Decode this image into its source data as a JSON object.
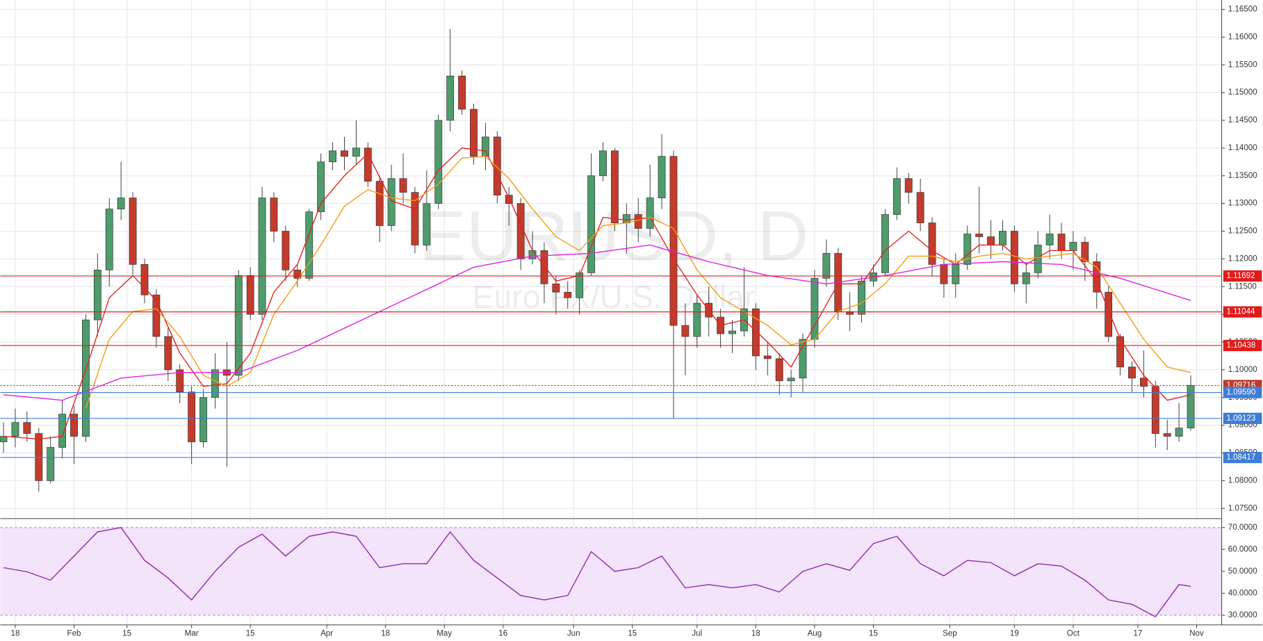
{
  "chart_data": [
    {
      "type": "candlestick",
      "title": "EURUSD, D",
      "subtitle": "Euro FX/U.S. Dollar",
      "x": [
        0,
        2,
        4,
        6,
        8,
        10,
        12,
        14,
        16,
        18,
        20,
        22,
        24,
        26,
        28,
        30,
        32,
        34,
        36,
        38,
        40,
        42,
        44,
        46,
        48,
        50,
        52,
        54,
        56,
        58,
        60,
        62,
        64,
        66,
        68,
        70,
        72,
        74,
        76,
        78,
        80,
        82,
        84,
        86,
        88,
        90,
        92,
        94,
        96,
        98,
        100,
        102,
        104,
        106,
        108,
        110,
        112,
        114,
        116,
        118,
        120,
        122,
        124,
        126,
        128,
        130,
        132,
        134,
        136,
        138,
        140,
        142,
        144,
        146,
        148,
        150,
        152,
        154,
        156,
        158,
        160,
        162,
        164,
        166,
        168,
        170,
        172,
        174,
        176,
        178,
        180,
        182,
        184,
        186,
        188,
        190,
        192,
        194,
        196,
        198,
        200,
        202
      ],
      "open": [
        1.087,
        1.088,
        1.0905,
        1.0885,
        1.08,
        1.086,
        1.092,
        1.088,
        1.109,
        1.118,
        1.129,
        1.131,
        1.119,
        1.1135,
        1.106,
        1.1,
        1.096,
        1.087,
        1.095,
        1.1,
        1.099,
        1.117,
        1.11,
        1.131,
        1.125,
        1.118,
        1.1165,
        1.1285,
        1.1375,
        1.1395,
        1.1385,
        1.14,
        1.134,
        1.126,
        1.1345,
        1.132,
        1.1225,
        1.13,
        1.145,
        1.153,
        1.147,
        1.1385,
        1.142,
        1.1315,
        1.13,
        1.12,
        1.1215,
        1.1155,
        1.114,
        1.113,
        1.1175,
        1.135,
        1.1395,
        1.1265,
        1.128,
        1.1255,
        1.131,
        1.1385,
        1.108,
        1.106,
        1.112,
        1.1095,
        1.1065,
        1.107,
        1.111,
        1.1025,
        1.102,
        1.098,
        1.0985,
        1.1055,
        1.1165,
        1.121,
        1.1105,
        1.11,
        1.116,
        1.1175,
        1.128,
        1.1345,
        1.132,
        1.1265,
        1.119,
        1.1155,
        1.119,
        1.1245,
        1.124,
        1.1225,
        1.125,
        1.1155,
        1.1175,
        1.1225,
        1.1245,
        1.1215,
        1.123,
        1.1195,
        1.114,
        1.106,
        1.1005,
        1.0985,
        1.097,
        1.0885,
        1.088,
        1.0895
      ],
      "high": [
        1.0905,
        1.093,
        1.0925,
        1.0895,
        1.088,
        1.0945,
        1.0935,
        1.11,
        1.121,
        1.131,
        1.1375,
        1.132,
        1.12,
        1.1145,
        1.1075,
        1.101,
        1.097,
        1.0965,
        1.103,
        1.105,
        1.118,
        1.1185,
        1.133,
        1.132,
        1.126,
        1.119,
        1.129,
        1.139,
        1.141,
        1.142,
        1.145,
        1.141,
        1.135,
        1.137,
        1.139,
        1.133,
        1.136,
        1.146,
        1.1615,
        1.154,
        1.148,
        1.1445,
        1.143,
        1.133,
        1.131,
        1.125,
        1.123,
        1.117,
        1.116,
        1.118,
        1.139,
        1.141,
        1.14,
        1.13,
        1.131,
        1.137,
        1.1425,
        1.1395,
        1.112,
        1.1135,
        1.115,
        1.111,
        1.109,
        1.1185,
        1.112,
        1.105,
        1.103,
        1.1,
        1.1065,
        1.118,
        1.1235,
        1.122,
        1.114,
        1.117,
        1.119,
        1.129,
        1.1365,
        1.1355,
        1.1345,
        1.1275,
        1.12,
        1.121,
        1.126,
        1.133,
        1.127,
        1.127,
        1.126,
        1.119,
        1.125,
        1.128,
        1.1265,
        1.125,
        1.124,
        1.121,
        1.115,
        1.1065,
        1.1015,
        1.1035,
        1.098,
        1.091,
        1.094,
        1.099
      ],
      "low": [
        1.085,
        1.086,
        1.087,
        1.078,
        1.0795,
        1.084,
        1.083,
        1.087,
        1.106,
        1.115,
        1.127,
        1.117,
        1.112,
        1.104,
        1.098,
        1.094,
        1.083,
        1.086,
        1.093,
        1.0825,
        1.098,
        1.109,
        1.109,
        1.123,
        1.116,
        1.115,
        1.116,
        1.127,
        1.136,
        1.136,
        1.137,
        1.133,
        1.123,
        1.125,
        1.13,
        1.121,
        1.1215,
        1.129,
        1.143,
        1.146,
        1.137,
        1.136,
        1.13,
        1.126,
        1.118,
        1.119,
        1.112,
        1.11,
        1.111,
        1.11,
        1.117,
        1.134,
        1.125,
        1.121,
        1.123,
        1.124,
        1.129,
        1.0912,
        1.099,
        1.104,
        1.106,
        1.104,
        1.103,
        1.106,
        1.1,
        1.099,
        1.0955,
        1.095,
        1.096,
        1.104,
        1.115,
        1.109,
        1.107,
        1.1085,
        1.115,
        1.117,
        1.127,
        1.13,
        1.125,
        1.117,
        1.113,
        1.113,
        1.118,
        1.121,
        1.12,
        1.1215,
        1.114,
        1.112,
        1.1165,
        1.12,
        1.12,
        1.118,
        1.116,
        1.111,
        1.105,
        1.099,
        1.096,
        1.095,
        1.086,
        1.0855,
        1.087,
        1.089
      ],
      "close": [
        1.088,
        1.0905,
        1.0885,
        1.08,
        1.086,
        1.092,
        1.088,
        1.109,
        1.118,
        1.129,
        1.131,
        1.119,
        1.1135,
        1.106,
        1.1,
        1.096,
        1.087,
        1.095,
        1.1,
        1.099,
        1.117,
        1.11,
        1.131,
        1.125,
        1.118,
        1.1165,
        1.1285,
        1.1375,
        1.1395,
        1.1385,
        1.14,
        1.134,
        1.126,
        1.1345,
        1.132,
        1.1225,
        1.13,
        1.145,
        1.153,
        1.147,
        1.1385,
        1.142,
        1.1315,
        1.13,
        1.12,
        1.1215,
        1.1155,
        1.114,
        1.113,
        1.1175,
        1.135,
        1.1395,
        1.1265,
        1.128,
        1.1255,
        1.131,
        1.1385,
        1.108,
        1.106,
        1.112,
        1.1095,
        1.1065,
        1.107,
        1.111,
        1.1025,
        1.102,
        1.098,
        1.0985,
        1.1055,
        1.1165,
        1.121,
        1.1105,
        1.11,
        1.116,
        1.1175,
        1.128,
        1.1345,
        1.132,
        1.1265,
        1.119,
        1.1155,
        1.119,
        1.1245,
        1.124,
        1.1225,
        1.125,
        1.1155,
        1.1175,
        1.1225,
        1.1245,
        1.1215,
        1.123,
        1.1195,
        1.114,
        1.106,
        1.1005,
        1.0985,
        1.097,
        1.0885,
        1.088,
        1.0895,
        1.0972
      ],
      "up_color": "#4e9c6c",
      "down_color": "#c43b2c",
      "lines": [
        {
          "color": "#e52222",
          "x": [
            0,
            6,
            10,
            14,
            18,
            22,
            26,
            30,
            34,
            38,
            42,
            46,
            50,
            54,
            58,
            62,
            66,
            70,
            74,
            78,
            82,
            86,
            90,
            94,
            98,
            102,
            106,
            110,
            114,
            118,
            122,
            126,
            130,
            134,
            138,
            142,
            146,
            150,
            154,
            158,
            162,
            166,
            170,
            174,
            178,
            182,
            186,
            190,
            194,
            198,
            202
          ],
          "values": [
            1.088,
            1.0875,
            1.088,
            1.1,
            1.113,
            1.117,
            1.1125,
            1.103,
            1.097,
            1.0975,
            1.103,
            1.114,
            1.119,
            1.13,
            1.135,
            1.139,
            1.1305,
            1.129,
            1.136,
            1.14,
            1.1395,
            1.131,
            1.1215,
            1.116,
            1.117,
            1.1275,
            1.127,
            1.1275,
            1.12,
            1.1135,
            1.108,
            1.109,
            1.105,
            1.1005,
            1.108,
            1.1155,
            1.1155,
            1.1215,
            1.125,
            1.1215,
            1.119,
            1.1225,
            1.1225,
            1.119,
            1.1215,
            1.1215,
            1.116,
            1.1055,
            1.099,
            1.0945,
            1.0955
          ]
        },
        {
          "color": "#f39c12",
          "x": [
            14,
            18,
            22,
            26,
            30,
            34,
            38,
            42,
            46,
            50,
            54,
            58,
            62,
            66,
            70,
            74,
            78,
            82,
            86,
            90,
            94,
            98,
            102,
            106,
            110,
            114,
            118,
            122,
            126,
            130,
            134,
            138,
            142,
            146,
            150,
            154,
            158,
            162,
            166,
            170,
            174,
            178,
            182,
            186,
            190,
            194,
            198,
            202
          ],
          "values": [
            1.093,
            1.1055,
            1.1105,
            1.111,
            1.106,
            1.099,
            1.097,
            1.0995,
            1.11,
            1.116,
            1.1225,
            1.1295,
            1.1325,
            1.131,
            1.1305,
            1.1335,
            1.1382,
            1.1385,
            1.1345,
            1.129,
            1.124,
            1.1215,
            1.126,
            1.1265,
            1.1275,
            1.1255,
            1.118,
            1.113,
            1.1105,
            1.108,
            1.1045,
            1.1055,
            1.1105,
            1.112,
            1.1155,
            1.1205,
            1.1205,
            1.1195,
            1.1205,
            1.121,
            1.12,
            1.1205,
            1.121,
            1.1185,
            1.112,
            1.1055,
            1.1005,
            1.0995
          ]
        },
        {
          "color": "#e020e0",
          "x": [
            0,
            10,
            20,
            30,
            40,
            50,
            60,
            70,
            80,
            90,
            100,
            110,
            120,
            130,
            140,
            150,
            160,
            170,
            180,
            190,
            202
          ],
          "values": [
            1.0955,
            1.0945,
            1.0985,
            1.0995,
            1.0995,
            1.1035,
            1.1085,
            1.1135,
            1.1185,
            1.1205,
            1.121,
            1.1225,
            1.1195,
            1.117,
            1.1155,
            1.117,
            1.119,
            1.1195,
            1.119,
            1.1165,
            1.1125
          ]
        }
      ],
      "levels": [
        {
          "value": 1.11692,
          "color": "#e21b1b"
        },
        {
          "value": 1.11044,
          "color": "#e21b1b"
        },
        {
          "value": 1.10438,
          "color": "#e21b1b"
        },
        {
          "value": 1.09716,
          "color": "#c0392b",
          "dotted": true
        },
        {
          "value": 1.0959,
          "label": "1.09590",
          "color": "#3d7dd8"
        },
        {
          "value": 1.09123,
          "color": "#3d7dd8"
        },
        {
          "value": 1.08417,
          "color": "#3d7dd8"
        }
      ],
      "xlim": [
        -0.55,
        207.26
      ],
      "xticks": [
        {
          "value": 2,
          "label": "18"
        },
        {
          "value": 12,
          "label": "Feb"
        },
        {
          "value": 21,
          "label": "15"
        },
        {
          "value": 32,
          "label": "Mar"
        },
        {
          "value": 42,
          "label": "15"
        },
        {
          "value": 55,
          "label": "Apr"
        },
        {
          "value": 65,
          "label": "18"
        },
        {
          "value": 75,
          "label": "May"
        },
        {
          "value": 85,
          "label": "16"
        },
        {
          "value": 97,
          "label": "Jun"
        },
        {
          "value": 107,
          "label": "15"
        },
        {
          "value": 118,
          "label": "Jul"
        },
        {
          "value": 128,
          "label": "18"
        },
        {
          "value": 138,
          "label": "Aug"
        },
        {
          "value": 148,
          "label": "15"
        },
        {
          "value": 161,
          "label": "Sep"
        },
        {
          "value": 172,
          "label": "19"
        },
        {
          "value": 182,
          "label": "Oct"
        },
        {
          "value": 193,
          "label": "17"
        },
        {
          "value": 203,
          "label": "Nov"
        }
      ],
      "ylim": [
        1.0733,
        1.1667
      ],
      "yticks": [
        {
          "value": 1.075,
          "label": "1.07500"
        },
        {
          "value": 1.08,
          "label": "1.08000"
        },
        {
          "value": 1.085,
          "label": "1.08500"
        },
        {
          "value": 1.09,
          "label": "1.09000"
        },
        {
          "value": 1.095,
          "label": "1.09500"
        },
        {
          "value": 1.1,
          "label": "1.10000"
        },
        {
          "value": 1.105,
          "label": "1.10500"
        },
        {
          "value": 1.11,
          "label": "1.11000"
        },
        {
          "value": 1.115,
          "label": "1.11500"
        },
        {
          "value": 1.12,
          "label": "1.12000"
        },
        {
          "value": 1.125,
          "label": "1.12500"
        },
        {
          "value": 1.13,
          "label": "1.13000"
        },
        {
          "value": 1.135,
          "label": "1.13500"
        },
        {
          "value": 1.14,
          "label": "1.14000"
        },
        {
          "value": 1.145,
          "label": "1.14500"
        },
        {
          "value": 1.15,
          "label": "1.15000"
        },
        {
          "value": 1.155,
          "label": "1.15500"
        },
        {
          "value": 1.16,
          "label": "1.16000"
        },
        {
          "value": 1.165,
          "label": "1.16500"
        }
      ],
      "grid": true
    },
    {
      "type": "line",
      "x": [
        0,
        4,
        8,
        12,
        16,
        20,
        24,
        28,
        32,
        36,
        40,
        44,
        48,
        52,
        56,
        60,
        64,
        68,
        72,
        76,
        80,
        84,
        88,
        92,
        96,
        100,
        104,
        108,
        112,
        116,
        120,
        124,
        128,
        132,
        136,
        140,
        144,
        148,
        152,
        156,
        160,
        164,
        168,
        172,
        176,
        180,
        184,
        188,
        192,
        196,
        200,
        202
      ],
      "values": [
        51.7,
        49.8,
        46,
        57,
        68,
        70,
        55,
        47,
        37,
        50,
        61,
        67,
        57,
        66,
        68,
        66,
        51.7,
        53.5,
        53.5,
        68,
        55,
        47,
        39,
        37,
        39,
        59,
        50,
        51.7,
        57,
        42.5,
        44,
        42.5,
        44,
        40.6,
        50,
        53.5,
        50.5,
        62.7,
        66,
        53.5,
        48,
        55,
        54,
        48,
        53.5,
        52.4,
        46,
        37,
        35,
        29.3,
        44,
        43.2
      ],
      "color": "#8e2aa8",
      "band": [
        30,
        70
      ],
      "band_color": "#f3e3fb",
      "xlim": [
        -0.55,
        207.26
      ],
      "ylim": [
        25.6,
        73.7
      ],
      "yticks": [
        {
          "value": 30,
          "label": "30.0000"
        },
        {
          "value": 40,
          "label": "40.0000"
        },
        {
          "value": 50,
          "label": "50.0000"
        },
        {
          "value": 60,
          "label": "60.0000"
        },
        {
          "value": 70,
          "label": "70.0000"
        }
      ]
    }
  ]
}
